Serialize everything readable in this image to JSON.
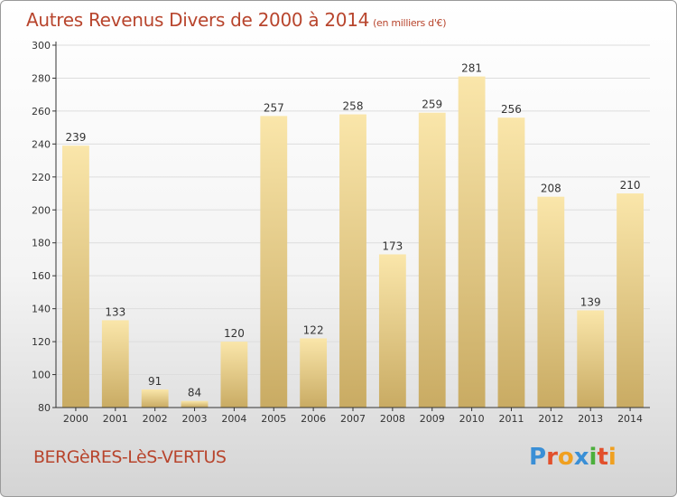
{
  "header": {
    "title": "Autres Revenus Divers de 2000 à 2014",
    "unit": "(en milliers d'€)"
  },
  "footer": {
    "town": "BERGèRES-LèS-VERTUS",
    "logo_letters": [
      {
        "char": "P",
        "color": "#3a8fd6"
      },
      {
        "char": "r",
        "color": "#e2502c"
      },
      {
        "char": "o",
        "color": "#f0a020"
      },
      {
        "char": "x",
        "color": "#3a8fd6"
      },
      {
        "char": "i",
        "color": "#4caf3c"
      },
      {
        "char": "t",
        "color": "#e2502c"
      },
      {
        "char": "i",
        "color": "#f0a020"
      }
    ]
  },
  "colors": {
    "bar_light": "#fae6aa",
    "bar_dark": "#c9ab63",
    "grid": "#dddddd",
    "axis": "#333333",
    "text": "#333333"
  },
  "chart_data": {
    "type": "bar",
    "title": "Autres Revenus Divers de 2000 à 2014",
    "xlabel": "",
    "ylabel": "",
    "ylim": [
      80,
      300
    ],
    "yticks": [
      80,
      100,
      120,
      140,
      160,
      180,
      200,
      220,
      240,
      260,
      280,
      300
    ],
    "grid": true,
    "categories": [
      "2000",
      "2001",
      "2002",
      "2003",
      "2004",
      "2005",
      "2006",
      "2007",
      "2008",
      "2009",
      "2010",
      "2011",
      "2012",
      "2013",
      "2014"
    ],
    "values": [
      239,
      133,
      91,
      84,
      120,
      257,
      122,
      258,
      173,
      259,
      281,
      256,
      208,
      139,
      210
    ]
  }
}
